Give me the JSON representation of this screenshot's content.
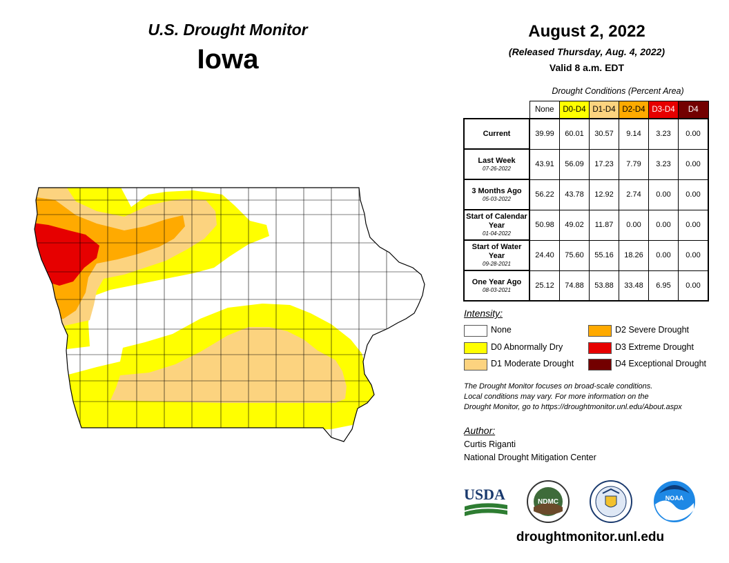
{
  "header": {
    "title": "U.S. Drought Monitor",
    "state": "Iowa",
    "date": "August 2, 2022",
    "released": "(Released Thursday, Aug. 4, 2022)",
    "valid": "Valid 8 a.m. EDT"
  },
  "table": {
    "title": "Drought Conditions (Percent Area)",
    "columns": [
      "None",
      "D0-D4",
      "D1-D4",
      "D2-D4",
      "D3-D4",
      "D4"
    ],
    "column_colors": [
      "#ffffff",
      "#ffff00",
      "#fcd37f",
      "#ffaa00",
      "#e60000",
      "#730000"
    ],
    "rows": [
      {
        "label": "Current",
        "sublabel": "",
        "values": [
          "39.99",
          "60.01",
          "30.57",
          "9.14",
          "3.23",
          "0.00"
        ]
      },
      {
        "label": "Last Week",
        "sublabel": "07-26-2022",
        "values": [
          "43.91",
          "56.09",
          "17.23",
          "7.79",
          "3.23",
          "0.00"
        ]
      },
      {
        "label": "3 Months Ago",
        "sublabel": "05-03-2022",
        "values": [
          "56.22",
          "43.78",
          "12.92",
          "2.74",
          "0.00",
          "0.00"
        ]
      },
      {
        "label": "Start of Calendar Year",
        "sublabel": "01-04-2022",
        "values": [
          "50.98",
          "49.02",
          "11.87",
          "0.00",
          "0.00",
          "0.00"
        ]
      },
      {
        "label": "Start of Water Year",
        "sublabel": "09-28-2021",
        "values": [
          "24.40",
          "75.60",
          "55.16",
          "18.26",
          "0.00",
          "0.00"
        ]
      },
      {
        "label": "One Year Ago",
        "sublabel": "08-03-2021",
        "values": [
          "25.12",
          "74.88",
          "53.88",
          "33.48",
          "6.95",
          "0.00"
        ]
      }
    ]
  },
  "legend": {
    "heading": "Intensity:",
    "items": [
      {
        "label": "None",
        "color": "#ffffff"
      },
      {
        "label": "D0 Abnormally Dry",
        "color": "#ffff00"
      },
      {
        "label": "D1 Moderate Drought",
        "color": "#fcd37f"
      },
      {
        "label": "D2 Severe Drought",
        "color": "#ffaa00"
      },
      {
        "label": "D3 Extreme Drought",
        "color": "#e60000"
      },
      {
        "label": "D4 Exceptional Drought",
        "color": "#730000"
      }
    ]
  },
  "note": {
    "line1": "The Drought Monitor focuses on broad-scale conditions.",
    "line2": "Local conditions may vary. For more information on the",
    "line3": "Drought Monitor, go to https://droughtmonitor.unl.edu/About.aspx"
  },
  "author": {
    "heading": "Author:",
    "name": "Curtis Riganti",
    "org": "National Drought Mitigation Center"
  },
  "logos": {
    "usda": "USDA",
    "ndmc": "NDMC",
    "noaa": "NOAA"
  },
  "website": "droughtmonitor.unl.edu"
}
